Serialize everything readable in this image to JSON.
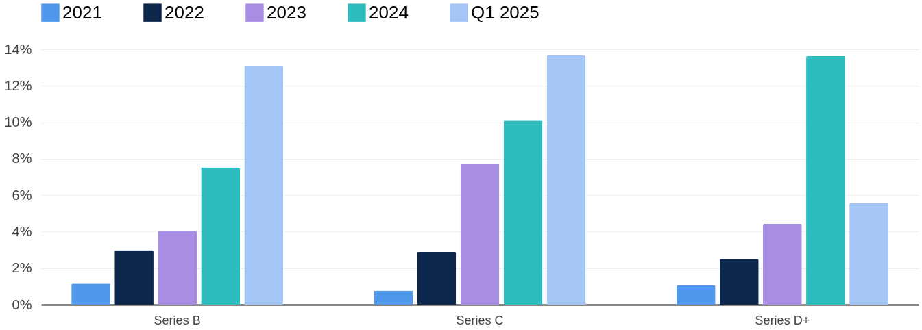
{
  "chart_data": {
    "type": "bar",
    "categories": [
      "Series B",
      "Series C",
      "Series D+"
    ],
    "series": [
      {
        "name": "2021",
        "color": "#4f97ea",
        "values": [
          1.15,
          0.77,
          1.06
        ]
      },
      {
        "name": "2022",
        "color": "#0c274b",
        "values": [
          2.98,
          2.89,
          2.51
        ]
      },
      {
        "name": "2023",
        "color": "#a78ee4",
        "values": [
          4.04,
          7.7,
          4.43
        ]
      },
      {
        "name": "2024",
        "color": "#2fbcbf",
        "values": [
          7.53,
          10.09,
          13.62
        ]
      },
      {
        "name": "Q1 2025",
        "color": "#a3c6f7",
        "values": [
          13.1,
          13.66,
          5.57
        ]
      }
    ],
    "ylim": [
      0,
      14
    ],
    "yticks": [
      {
        "value": 0,
        "label": "0%"
      },
      {
        "value": 2,
        "label": "2%"
      },
      {
        "value": 4,
        "label": "4%"
      },
      {
        "value": 6,
        "label": "6%"
      },
      {
        "value": 8,
        "label": "8%"
      },
      {
        "value": 10,
        "label": "10%"
      },
      {
        "value": 12,
        "label": "12%"
      },
      {
        "value": 14,
        "label": "14%"
      }
    ],
    "grid": "y",
    "legend": "top left"
  }
}
